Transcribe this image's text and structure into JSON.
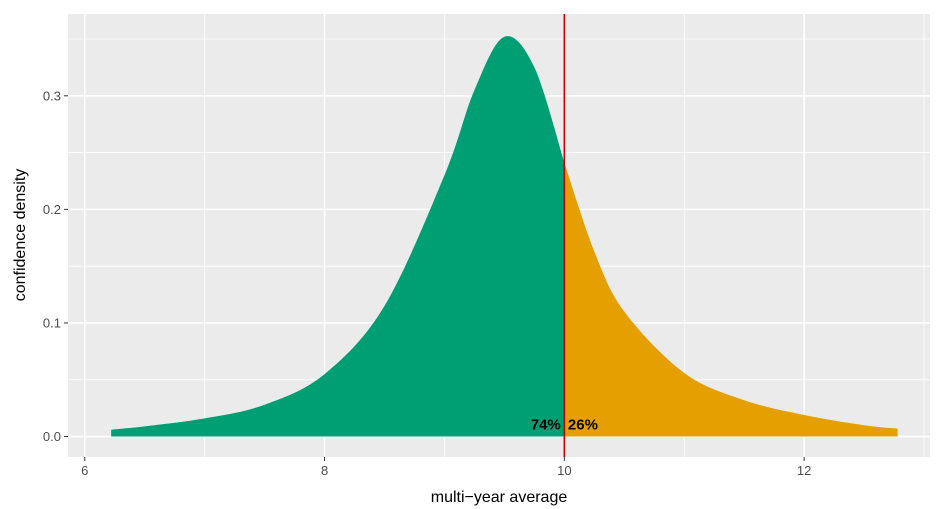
{
  "chart_data": {
    "type": "area",
    "title": "",
    "xlabel": "multi−year average",
    "ylabel": "confidence density",
    "xlim": [
      5.86,
      13.05
    ],
    "ylim": [
      -0.018,
      0.372
    ],
    "x_ticks": [
      6,
      8,
      10,
      12
    ],
    "x_tick_labels": [
      "6",
      "8",
      "10",
      "12"
    ],
    "y_ticks": [
      0.0,
      0.1,
      0.2,
      0.3
    ],
    "y_tick_labels": [
      "0.0",
      "0.1",
      "0.2",
      "0.3"
    ],
    "grid": true,
    "background": "#ebebeb",
    "threshold": {
      "x": 10,
      "color": "#cc0000"
    },
    "series": [
      {
        "x": [
          6.22,
          6.5,
          7.0,
          7.5,
          8.0,
          8.5,
          9.0,
          9.25,
          9.5,
          9.75,
          10.0
        ],
        "y": [
          0.006,
          0.009,
          0.016,
          0.028,
          0.055,
          0.115,
          0.23,
          0.305,
          0.352,
          0.325,
          0.241
        ],
        "color": "#009e73"
      },
      {
        "x": [
          10.0,
          10.25,
          10.5,
          11.0,
          11.5,
          12.0,
          12.5,
          12.78
        ],
        "y": [
          0.241,
          0.163,
          0.11,
          0.056,
          0.032,
          0.019,
          0.01,
          0.007
        ],
        "color": "#e69f00"
      }
    ],
    "annotations": [
      {
        "text": "74%",
        "x": 9.97,
        "y": 0.006,
        "anchor": "end"
      },
      {
        "text": "26%",
        "x": 10.03,
        "y": 0.006,
        "anchor": "start"
      }
    ]
  }
}
